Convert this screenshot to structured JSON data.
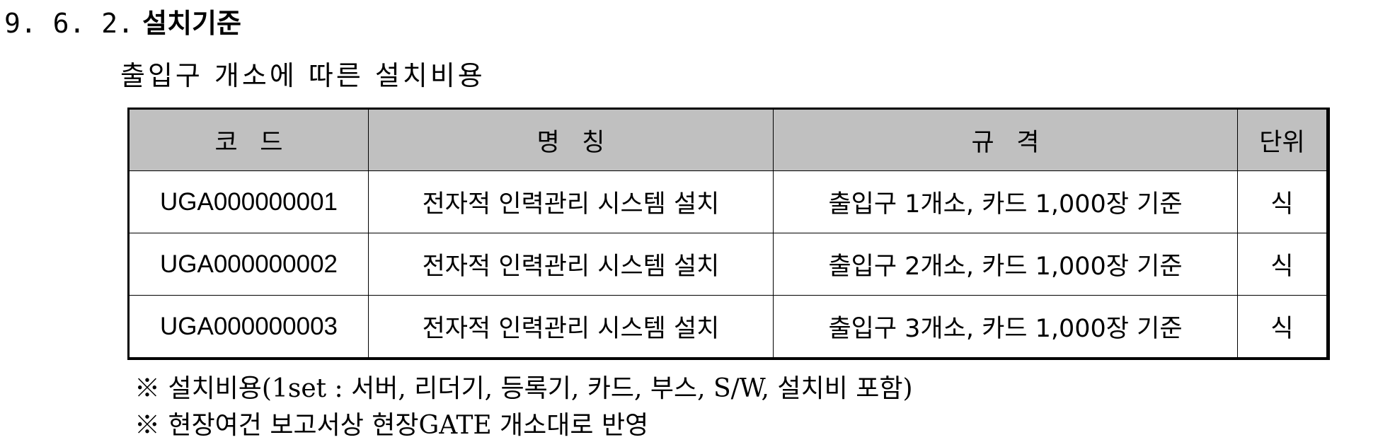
{
  "heading": {
    "number": "9. 6. 2.",
    "title": "설치기준"
  },
  "subtitle": "출입구 개소에 따른 설치비용",
  "table": {
    "headers": {
      "code": "코드",
      "name": "명칭",
      "spec": "규격",
      "unit": "단위"
    },
    "rows": [
      {
        "code": "UGA000000001",
        "name": "전자적 인력관리 시스템 설치",
        "spec": "출입구 1개소, 카드 1,000장 기준",
        "unit": "식"
      },
      {
        "code": "UGA000000002",
        "name": "전자적 인력관리 시스템 설치",
        "spec": "출입구 2개소, 카드 1,000장 기준",
        "unit": "식"
      },
      {
        "code": "UGA000000003",
        "name": "전자적 인력관리 시스템 설치",
        "spec": "출입구 3개소, 카드 1,000장 기준",
        "unit": "식"
      }
    ]
  },
  "notes": [
    "※ 설치비용(1set : 서버, 리더기, 등록기, 카드, 부스, S/W, 설치비 포함)",
    "※ 현장여건 보고서상 현장GATE 개소대로 반영"
  ],
  "colors": {
    "header_background": "#c0c0c0",
    "border": "#000000",
    "text": "#000000"
  }
}
